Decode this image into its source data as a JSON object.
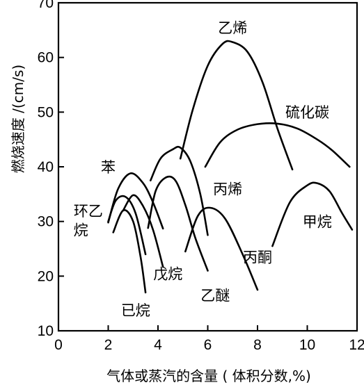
{
  "chart_data": {
    "type": "line",
    "title": "",
    "xlabel": "气体或蒸汽的含量 ( 体积分数,%)",
    "ylabel": "燃烧速度 /(cm/s)",
    "xlim": [
      0,
      12
    ],
    "ylim": [
      10,
      70
    ],
    "xticks": [
      0,
      2,
      4,
      6,
      8,
      10,
      12
    ],
    "yticks": [
      10,
      20,
      30,
      40,
      50,
      60,
      70
    ],
    "grid": false,
    "legend": "none",
    "series": [
      {
        "name": "乙烯",
        "x": [
          4.9,
          5.4,
          6.0,
          6.6,
          7.0,
          7.6,
          8.2,
          8.8,
          9.4
        ],
        "y": [
          41.5,
          50.5,
          58.5,
          62.5,
          62.8,
          61.0,
          55.5,
          47.0,
          39.5
        ]
      },
      {
        "name": "硫化碳",
        "x": [
          5.9,
          6.5,
          7.2,
          8.0,
          8.8,
          9.6,
          10.4,
          11.0,
          11.7
        ],
        "y": [
          40.0,
          44.5,
          46.8,
          47.8,
          47.9,
          47.0,
          45.0,
          43.0,
          40.0
        ]
      },
      {
        "name": "苯",
        "x": [
          2.0,
          2.4,
          2.9,
          3.4,
          3.8,
          4.2
        ],
        "y": [
          29.8,
          36.0,
          38.8,
          37.0,
          33.5,
          28.7
        ]
      },
      {
        "name": "丙烯",
        "x": [
          3.7,
          4.1,
          4.6,
          4.9,
          5.3,
          5.7,
          6.0
        ],
        "y": [
          37.5,
          41.5,
          43.2,
          43.5,
          41.0,
          35.0,
          27.5
        ]
      },
      {
        "name": "",
        "x": [
          3.6,
          3.9,
          4.3,
          4.7,
          5.1,
          5.5,
          6.0
        ],
        "y": [
          28.8,
          35.5,
          38.0,
          37.5,
          33.0,
          27.0,
          21.0
        ]
      },
      {
        "name": "环乙烷",
        "x": [
          2.0,
          2.3,
          2.7,
          3.1,
          3.5
        ],
        "y": [
          30.0,
          33.8,
          34.5,
          31.5,
          24.0
        ]
      },
      {
        "name": "戊烷",
        "x": [
          2.6,
          3.0,
          3.4,
          3.8,
          4.2
        ],
        "y": [
          32.0,
          34.8,
          32.8,
          28.5,
          21.7
        ]
      },
      {
        "name": "已烷",
        "x": [
          2.2,
          2.6,
          3.0,
          3.3,
          3.5
        ],
        "y": [
          28.0,
          32.0,
          30.0,
          23.5,
          17.0
        ]
      },
      {
        "name": "乙醚",
        "x": [
          5.1,
          5.6,
          6.1,
          6.7,
          7.4,
          8.0
        ],
        "y": [
          24.5,
          31.0,
          32.5,
          30.5,
          24.0,
          17.5
        ]
      },
      {
        "name": "甲烷",
        "x": [
          8.6,
          9.3,
          10.0,
          10.4,
          10.9,
          11.4,
          11.8
        ],
        "y": [
          25.5,
          33.5,
          36.6,
          37.0,
          35.5,
          31.5,
          28.5
        ]
      }
    ],
    "labels": [
      {
        "text": "乙烯",
        "x": 7.0,
        "y": 64.5
      },
      {
        "text": "硫化碳",
        "x": 10.0,
        "y": 49.0
      },
      {
        "text": "苯",
        "x": 2.0,
        "y": 39.0
      },
      {
        "text": "丙烯",
        "x": 6.8,
        "y": 35.0
      },
      {
        "text": "环乙",
        "x": 1.2,
        "y": 31.0
      },
      {
        "text": "烷",
        "x": 0.9,
        "y": 27.5
      },
      {
        "text": "甲烷",
        "x": 10.4,
        "y": 29.0
      },
      {
        "text": "丙酮",
        "x": 8.0,
        "y": 22.5
      },
      {
        "text": "戊烷",
        "x": 4.4,
        "y": 19.5
      },
      {
        "text": "乙醚",
        "x": 6.3,
        "y": 15.5
      },
      {
        "text": "已烷",
        "x": 3.1,
        "y": 12.8
      }
    ]
  }
}
